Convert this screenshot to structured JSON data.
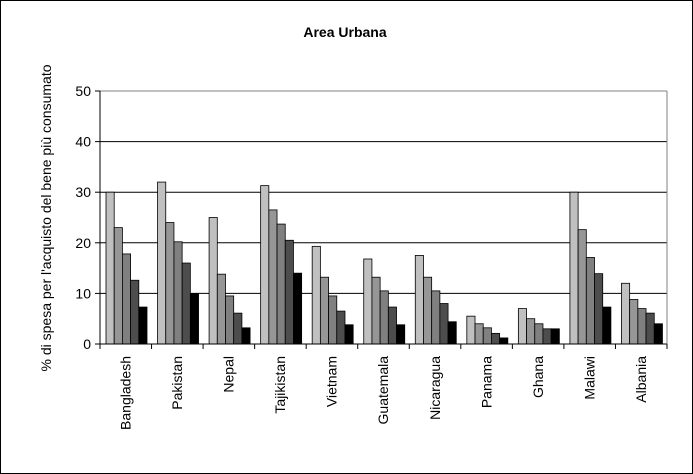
{
  "chart_data": {
    "type": "bar",
    "title": "Area Urbana",
    "xlabel": "",
    "ylabel": "% di spesa per l'acquisto del bene più consumato",
    "ylim": [
      0,
      50
    ],
    "yticks": [
      "0",
      "10",
      "20",
      "30",
      "40",
      "50"
    ],
    "grid": "horizontal",
    "legend": "none",
    "categories": [
      "Bangladesh",
      "Pakistan",
      "Nepal",
      "Tajikistan",
      "Vietnam",
      "Guatemala",
      "Nicaragua",
      "Panama",
      "Ghana",
      "Malawi",
      "Albania"
    ],
    "series": [
      {
        "color": "#c0c0c0",
        "values": [
          30,
          32,
          25,
          31.3,
          19.3,
          16.8,
          17.5,
          5.5,
          7,
          30,
          12
        ]
      },
      {
        "color": "#969696",
        "values": [
          23,
          24,
          13.8,
          26.5,
          13.2,
          13.2,
          13.2,
          4,
          5,
          22.6,
          8.8
        ]
      },
      {
        "color": "#808080",
        "values": [
          17.8,
          20.2,
          9.5,
          23.7,
          9.5,
          10.5,
          10.5,
          3.2,
          4,
          17.1,
          7
        ]
      },
      {
        "color": "#4d4d4d",
        "values": [
          12.6,
          16,
          6.1,
          20.5,
          6.5,
          7.3,
          8,
          2.1,
          3,
          13.9,
          6.1
        ]
      },
      {
        "color": "#000000",
        "values": [
          7.3,
          10,
          3.2,
          14,
          3.8,
          3.8,
          4.4,
          1.2,
          3,
          7.3,
          4
        ]
      }
    ]
  },
  "style": {
    "plot_background": "#ffffff",
    "grid_color": "#000000",
    "bar_edge": "#000000"
  }
}
